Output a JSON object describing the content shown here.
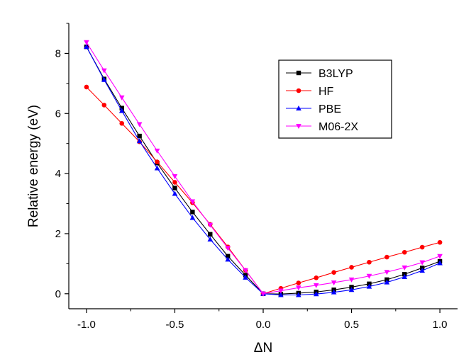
{
  "chart_data": {
    "type": "line",
    "xlabel": "ΔN",
    "ylabel": "Relative energy (eV)",
    "xlim": [
      -1.1,
      1.1
    ],
    "ylim": [
      -0.5,
      9.0
    ],
    "x_ticks": [
      -1.0,
      -0.5,
      0.0,
      0.5,
      1.0
    ],
    "x_tick_labels": [
      "-1.0",
      "-0.5",
      "0.0",
      "0.5",
      "1.0"
    ],
    "y_ticks": [
      0,
      2,
      4,
      6,
      8
    ],
    "y_tick_labels": [
      "0",
      "2",
      "4",
      "6",
      "8"
    ],
    "grid": false,
    "legend_position": "top-right",
    "x": [
      -1.0,
      -0.9,
      -0.8,
      -0.7,
      -0.6,
      -0.5,
      -0.4,
      -0.3,
      -0.2,
      -0.1,
      0.0,
      0.1,
      0.2,
      0.3,
      0.4,
      0.5,
      0.6,
      0.7,
      0.8,
      0.9,
      1.0
    ],
    "series": [
      {
        "name": "B3LYP",
        "color": "#000000",
        "marker": "square",
        "values": [
          8.22,
          7.15,
          6.18,
          5.25,
          4.35,
          3.52,
          2.72,
          1.98,
          1.25,
          0.62,
          0.0,
          -0.01,
          0.02,
          0.06,
          0.13,
          0.22,
          0.33,
          0.47,
          0.65,
          0.86,
          1.08
        ]
      },
      {
        "name": "HF",
        "color": "#ff0000",
        "marker": "circle",
        "values": [
          6.88,
          6.28,
          5.67,
          5.06,
          4.39,
          3.71,
          3.03,
          2.31,
          1.56,
          0.78,
          0.0,
          0.18,
          0.36,
          0.53,
          0.71,
          0.88,
          1.05,
          1.22,
          1.38,
          1.55,
          1.71
        ]
      },
      {
        "name": "PBE",
        "color": "#0000ff",
        "marker": "triangle-up",
        "values": [
          8.22,
          7.12,
          6.09,
          5.08,
          4.18,
          3.33,
          2.53,
          1.81,
          1.14,
          0.54,
          0.0,
          -0.04,
          -0.04,
          -0.01,
          0.05,
          0.13,
          0.24,
          0.38,
          0.56,
          0.77,
          1.02
        ]
      },
      {
        "name": "M06-2X",
        "color": "#ff00ff",
        "marker": "triangle-down",
        "values": [
          8.37,
          7.43,
          6.53,
          5.64,
          4.76,
          3.91,
          3.07,
          2.29,
          1.52,
          0.78,
          0.0,
          0.1,
          0.2,
          0.28,
          0.37,
          0.47,
          0.59,
          0.72,
          0.87,
          1.04,
          1.25
        ]
      }
    ]
  }
}
